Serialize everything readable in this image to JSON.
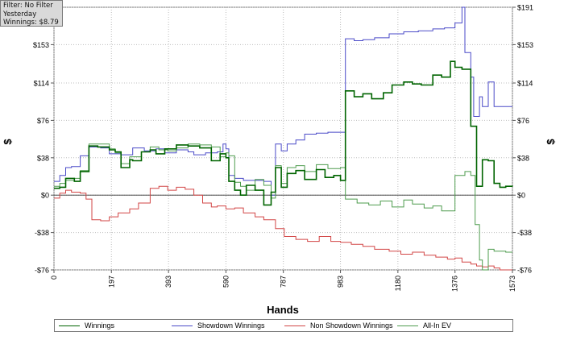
{
  "info": {
    "filter": "Filter: No Filter",
    "period": "Yesterday",
    "winnings": "Winnings: $8.79"
  },
  "chart_data": {
    "type": "line",
    "xlabel": "Hands",
    "ylabel": "$",
    "y2label": "$",
    "xlim": [
      0,
      1573
    ],
    "ylim": [
      -76,
      191
    ],
    "x_ticks": [
      0,
      197,
      393,
      590,
      787,
      983,
      1180,
      1376,
      1573
    ],
    "y_ticks": [
      -76,
      -38,
      0,
      38,
      76,
      114,
      153
    ],
    "y_ticks_right": [
      -76,
      -38,
      0,
      38,
      76,
      114,
      153,
      191
    ],
    "y_tick_labels": [
      "-$76",
      "-$38",
      "$0",
      "$38",
      "$76",
      "$114",
      "$153"
    ],
    "y_tick_labels_right": [
      "-$76",
      "-$38",
      "$0",
      "$38",
      "$76",
      "$114",
      "$153",
      "$191"
    ],
    "grid": true,
    "legend_position": "bottom",
    "series": [
      {
        "name": "Winnings",
        "color": "#006400",
        "x": [
          0,
          20,
          40,
          70,
          90,
          120,
          150,
          190,
          210,
          230,
          260,
          270,
          300,
          330,
          350,
          380,
          420,
          460,
          500,
          540,
          570,
          590,
          600,
          620,
          640,
          660,
          690,
          720,
          745,
          760,
          780,
          800,
          830,
          860,
          900,
          930,
          960,
          983,
          1000,
          1030,
          1060,
          1090,
          1130,
          1160,
          1200,
          1230,
          1260,
          1300,
          1330,
          1360,
          1376,
          1400,
          1430,
          1450,
          1470,
          1490,
          1510,
          1530,
          1550,
          1573
        ],
        "y": [
          7,
          8,
          17,
          14,
          24,
          50,
          49,
          46,
          44,
          28,
          36,
          35,
          44,
          46,
          42,
          47,
          51,
          50,
          48,
          35,
          42,
          38,
          14,
          5,
          0,
          10,
          5,
          -10,
          3,
          28,
          8,
          22,
          25,
          16,
          26,
          18,
          20,
          15,
          106,
          100,
          103,
          98,
          104,
          112,
          115,
          113,
          112,
          122,
          120,
          136,
          130,
          128,
          70,
          9,
          36,
          35,
          12,
          8,
          9,
          8.79
        ]
      },
      {
        "name": "Showdown Winnings",
        "color": "#4a4ac8",
        "x": [
          0,
          20,
          40,
          60,
          90,
          120,
          160,
          190,
          230,
          270,
          310,
          350,
          380,
          420,
          460,
          480,
          520,
          560,
          580,
          590,
          600,
          620,
          650,
          680,
          720,
          745,
          760,
          780,
          800,
          830,
          860,
          900,
          940,
          983,
          1000,
          1030,
          1060,
          1100,
          1150,
          1200,
          1250,
          1300,
          1340,
          1376,
          1400,
          1410,
          1430,
          1440,
          1460,
          1470,
          1490,
          1510,
          1530,
          1573
        ],
        "y": [
          14,
          20,
          28,
          29,
          40,
          49,
          48,
          42,
          41,
          48,
          45,
          47,
          43,
          46,
          44,
          41,
          43,
          44,
          52,
          47,
          20,
          17,
          15,
          15,
          14,
          0,
          52,
          45,
          52,
          56,
          62,
          63,
          64,
          64,
          159,
          157,
          158,
          160,
          164,
          166,
          167,
          169,
          170,
          175,
          200,
          145,
          120,
          80,
          100,
          90,
          115,
          90,
          90,
          90
        ]
      },
      {
        "name": "Non Showdown Winnings",
        "color": "#d24646",
        "x": [
          0,
          20,
          40,
          60,
          90,
          110,
          130,
          160,
          190,
          220,
          260,
          290,
          330,
          360,
          390,
          420,
          450,
          480,
          510,
          540,
          560,
          590,
          620,
          650,
          690,
          720,
          760,
          790,
          830,
          870,
          910,
          950,
          983,
          1020,
          1060,
          1100,
          1150,
          1190,
          1230,
          1270,
          1310,
          1350,
          1376,
          1400,
          1430,
          1450,
          1470,
          1490,
          1510,
          1530,
          1550,
          1573
        ],
        "y": [
          -3,
          2,
          5,
          3,
          2,
          -4,
          -25,
          -26,
          -22,
          -18,
          -14,
          -8,
          7,
          9,
          5,
          8,
          6,
          0,
          -8,
          -12,
          -11,
          -14,
          -13,
          -18,
          -22,
          -25,
          -34,
          -42,
          -45,
          -47,
          -42,
          -47,
          -48,
          -50,
          -52,
          -55,
          -57,
          -60,
          -58,
          -61,
          -63,
          -65,
          -64,
          -68,
          -70,
          -72,
          -73,
          -72,
          -74,
          -76,
          -77,
          -78
        ]
      },
      {
        "name": "All-In EV",
        "color": "#4e9c4e",
        "x": [
          0,
          20,
          40,
          70,
          90,
          120,
          150,
          190,
          210,
          230,
          260,
          300,
          330,
          360,
          390,
          420,
          460,
          500,
          540,
          570,
          590,
          600,
          620,
          640,
          660,
          690,
          720,
          745,
          760,
          780,
          800,
          830,
          860,
          900,
          940,
          983,
          1000,
          1040,
          1080,
          1120,
          1160,
          1200,
          1230,
          1270,
          1300,
          1330,
          1376,
          1410,
          1430,
          1445,
          1460,
          1470,
          1490,
          1510,
          1530,
          1550,
          1573
        ],
        "y": [
          9,
          12,
          15,
          17,
          25,
          52,
          52,
          47,
          43,
          32,
          39,
          44,
          49,
          46,
          45,
          48,
          52,
          51,
          49,
          39,
          43,
          40,
          13,
          9,
          5,
          16,
          10,
          -3,
          30,
          12,
          28,
          30,
          24,
          31,
          27,
          28,
          -4,
          -8,
          -10,
          -6,
          -12,
          -5,
          -9,
          -13,
          -11,
          -16,
          20,
          24,
          20,
          -30,
          -66,
          -80,
          -55,
          -57,
          -57,
          -58,
          -58
        ]
      }
    ]
  }
}
